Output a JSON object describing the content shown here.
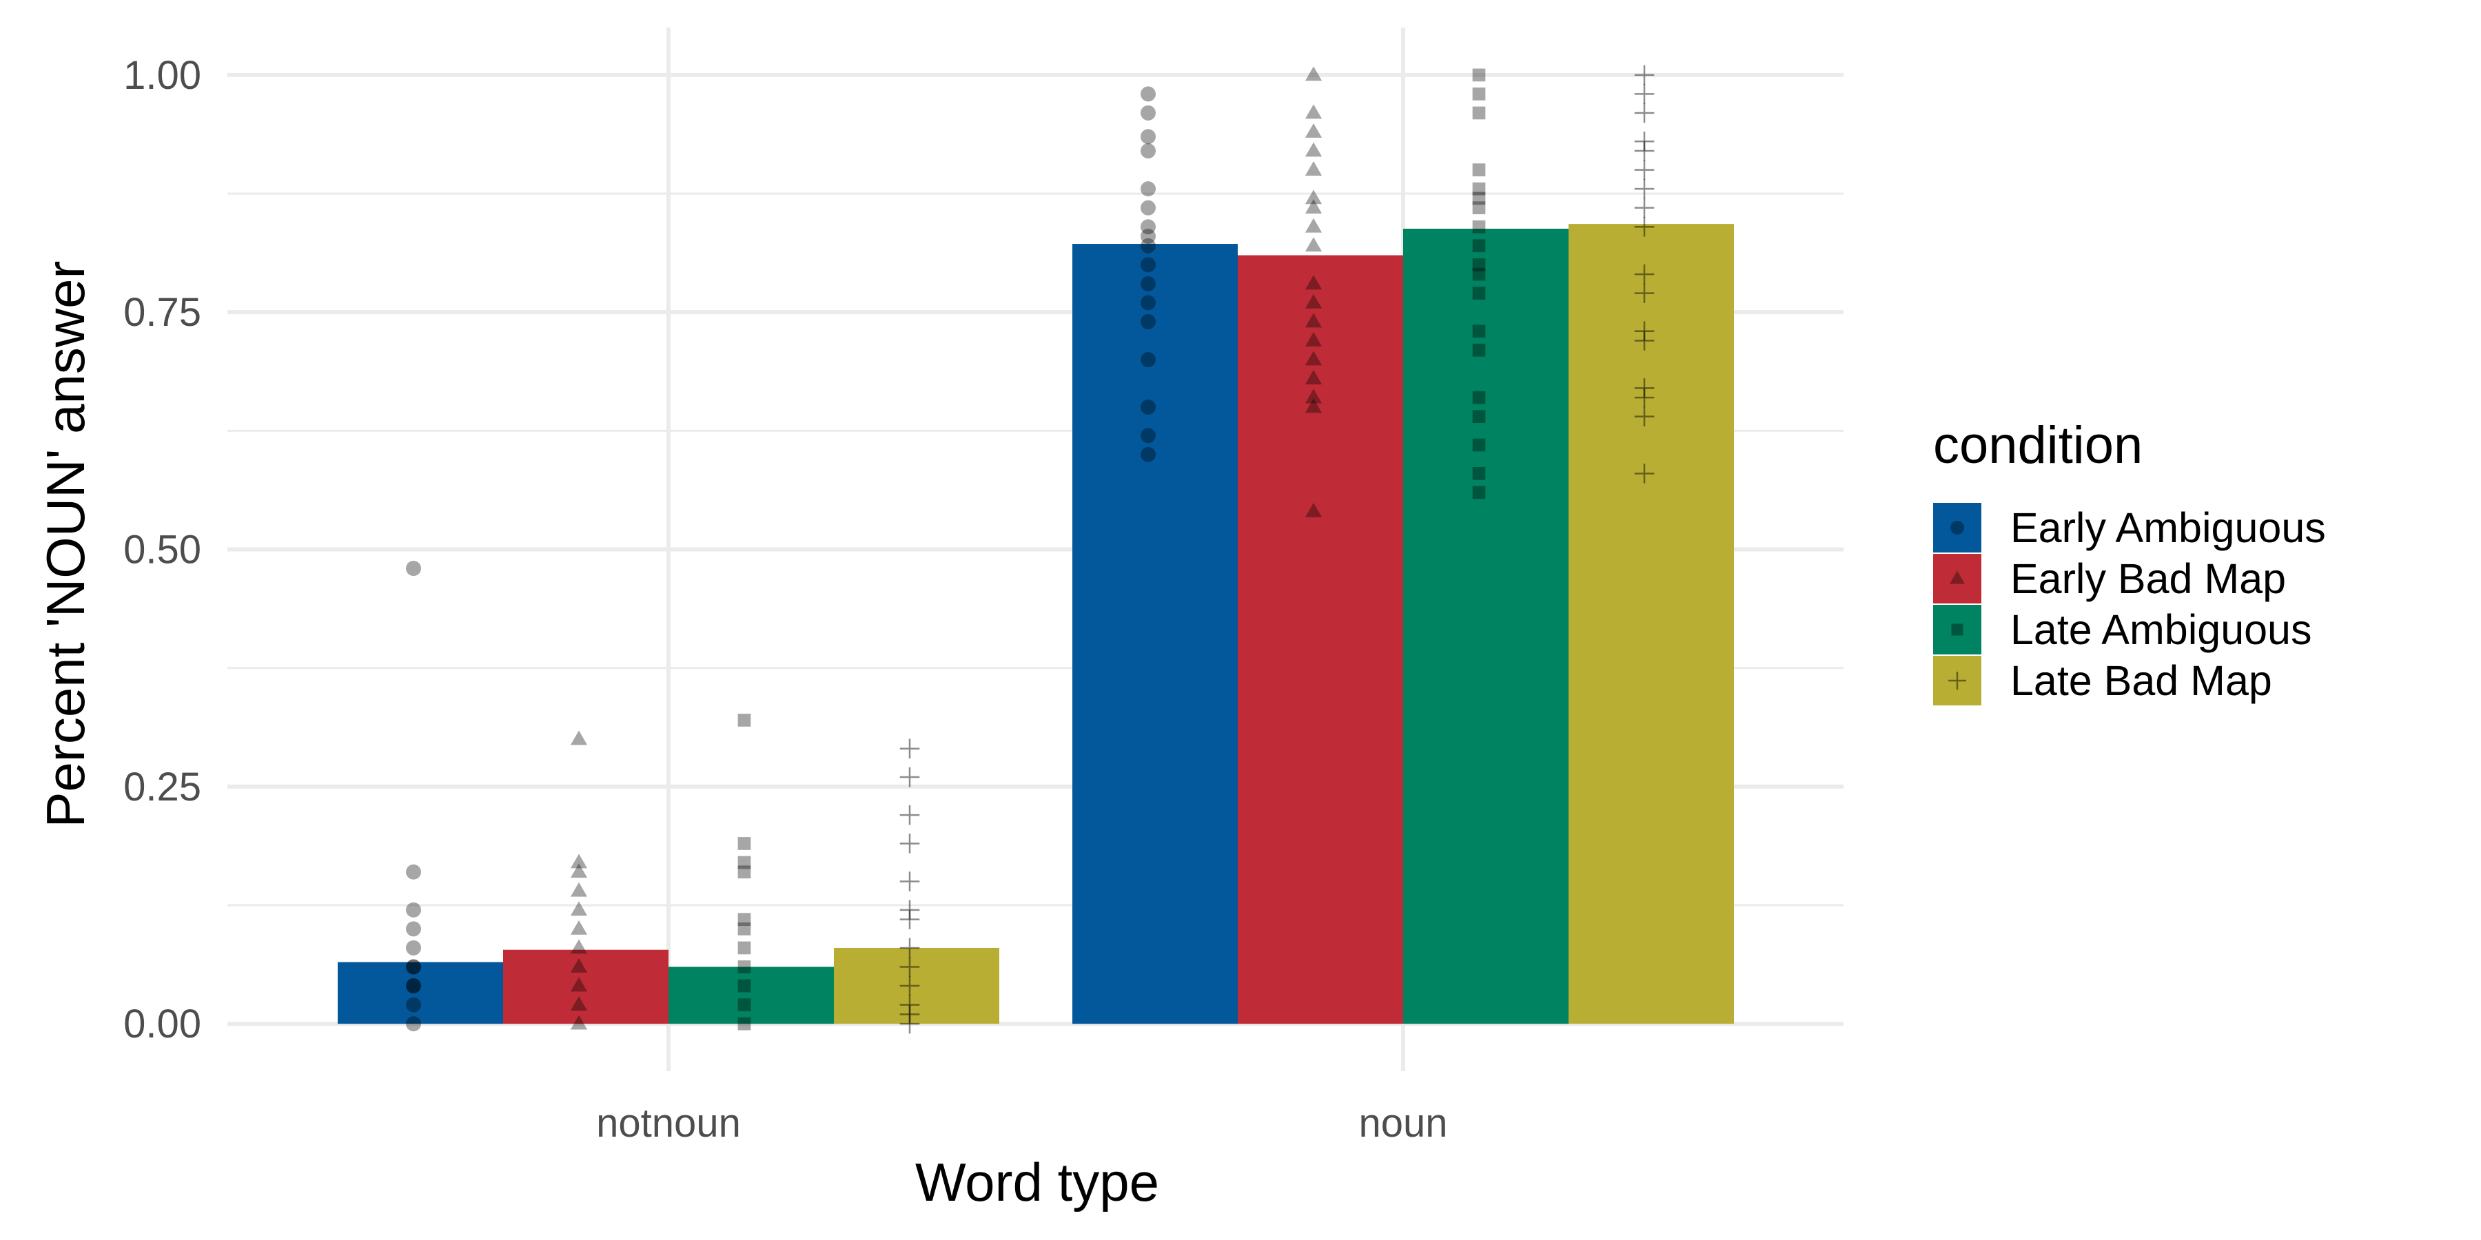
{
  "chart_data": {
    "type": "bar",
    "xlabel": "Word type",
    "ylabel": "Percent 'NOUN' answer",
    "categories": [
      "notnoun",
      "noun"
    ],
    "ylim": [
      -0.05,
      1.05
    ],
    "yticks": [
      0.0,
      0.25,
      0.5,
      0.75,
      1.0
    ],
    "ytick_labels": [
      "0.00",
      "0.25",
      "0.50",
      "0.75",
      "1.00"
    ],
    "grid": true,
    "legend": {
      "title": "condition",
      "position": "right"
    },
    "series": [
      {
        "name": "Early Ambiguous",
        "color": "#03589c",
        "marker": "circle",
        "values": [
          0.065,
          0.822
        ],
        "points": [
          [
            0,
            0.02,
            0.04,
            0.04,
            0.06,
            0.06,
            0.08,
            0.1,
            0.12,
            0.16,
            0.48
          ],
          [
            0.6,
            0.62,
            0.65,
            0.7,
            0.74,
            0.76,
            0.78,
            0.8,
            0.82,
            0.83,
            0.84,
            0.86,
            0.88,
            0.92,
            0.935,
            0.96,
            0.98
          ]
        ]
      },
      {
        "name": "Early Bad Map",
        "color": "#bf2b37",
        "marker": "triangle",
        "values": [
          0.078,
          0.81
        ],
        "points": [
          [
            0,
            0.02,
            0.04,
            0.06,
            0.08,
            0.1,
            0.12,
            0.14,
            0.16,
            0.17,
            0.3
          ],
          [
            0.54,
            0.65,
            0.66,
            0.68,
            0.7,
            0.72,
            0.74,
            0.76,
            0.78,
            0.82,
            0.84,
            0.86,
            0.87,
            0.9,
            0.92,
            0.94,
            0.96,
            1.0
          ]
        ]
      },
      {
        "name": "Late Ambiguous",
        "color": "#008361",
        "marker": "square",
        "values": [
          0.06,
          0.838
        ],
        "points": [
          [
            0,
            0.02,
            0.04,
            0.06,
            0.08,
            0.1,
            0.11,
            0.16,
            0.17,
            0.19,
            0.32
          ],
          [
            0.56,
            0.58,
            0.61,
            0.64,
            0.66,
            0.71,
            0.73,
            0.77,
            0.79,
            0.8,
            0.82,
            0.84,
            0.86,
            0.87,
            0.88,
            0.9,
            0.96,
            0.98,
            1.0
          ]
        ]
      },
      {
        "name": "Late Bad Map",
        "color": "#b9ae34",
        "marker": "plus",
        "values": [
          0.08,
          0.843
        ],
        "points": [
          [
            0,
            0.01,
            0.02,
            0.04,
            0.06,
            0.08,
            0.11,
            0.12,
            0.15,
            0.19,
            0.22,
            0.26,
            0.29
          ],
          [
            0.58,
            0.64,
            0.66,
            0.67,
            0.72,
            0.73,
            0.77,
            0.79,
            0.84,
            0.86,
            0.88,
            0.9,
            0.92,
            0.93,
            0.96,
            0.98,
            1.0
          ]
        ]
      }
    ]
  }
}
